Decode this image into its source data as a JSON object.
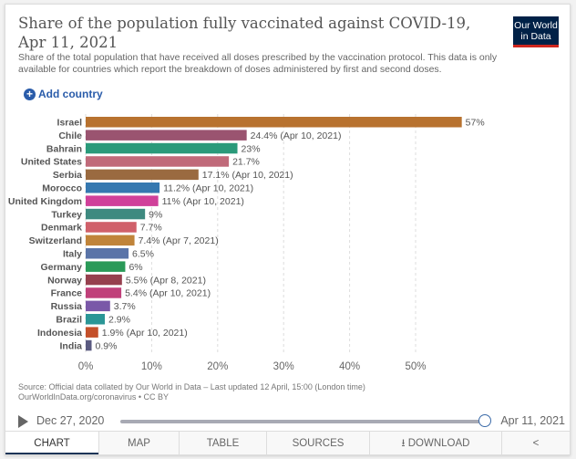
{
  "header": {
    "title": "Share of the population fully vaccinated against COVID-19, Apr 11, 2021",
    "subtitle": "Share of the total population that have received all doses prescribed by the vaccination protocol. This data is only available for countries which report the breakdown of doses administered by first and second doses.",
    "logo": "Our World in Data",
    "add_country": "Add country"
  },
  "chart_data": {
    "type": "bar",
    "orientation": "horizontal",
    "xlim": [
      0,
      57
    ],
    "grid": true,
    "ticks": [
      "0%",
      "10%",
      "20%",
      "30%",
      "40%",
      "50%"
    ],
    "tick_values": [
      0,
      10,
      20,
      30,
      40,
      50
    ],
    "bars": [
      {
        "country": "Israel",
        "value": 57,
        "label": "57%",
        "color": "#b8722f"
      },
      {
        "country": "Chile",
        "value": 24.4,
        "label": "24.4% (Apr 10, 2021)",
        "color": "#9a5470"
      },
      {
        "country": "Bahrain",
        "value": 23,
        "label": "23%",
        "color": "#2a9a7a"
      },
      {
        "country": "United States",
        "value": 21.7,
        "label": "21.7%",
        "color": "#c06a7a"
      },
      {
        "country": "Serbia",
        "value": 17.1,
        "label": "17.1% (Apr 10, 2021)",
        "color": "#9a6a40"
      },
      {
        "country": "Morocco",
        "value": 11.2,
        "label": "11.2% (Apr 10, 2021)",
        "color": "#3578b0"
      },
      {
        "country": "United Kingdom",
        "value": 11,
        "label": "11% (Apr 10, 2021)",
        "color": "#d0409a"
      },
      {
        "country": "Turkey",
        "value": 9,
        "label": "9%",
        "color": "#3e8a80"
      },
      {
        "country": "Denmark",
        "value": 7.7,
        "label": "7.7%",
        "color": "#d0606a"
      },
      {
        "country": "Switzerland",
        "value": 7.4,
        "label": "7.4% (Apr 7, 2021)",
        "color": "#c0843a"
      },
      {
        "country": "Italy",
        "value": 6.5,
        "label": "6.5%",
        "color": "#5a74a8"
      },
      {
        "country": "Germany",
        "value": 6,
        "label": "6%",
        "color": "#2a9a58"
      },
      {
        "country": "Norway",
        "value": 5.5,
        "label": "5.5% (Apr 8, 2021)",
        "color": "#96404e"
      },
      {
        "country": "France",
        "value": 5.4,
        "label": "5.4% (Apr 10, 2021)",
        "color": "#c0407a"
      },
      {
        "country": "Russia",
        "value": 3.7,
        "label": "3.7%",
        "color": "#7a58a8"
      },
      {
        "country": "Brazil",
        "value": 2.9,
        "label": "2.9%",
        "color": "#2a9696"
      },
      {
        "country": "Indonesia",
        "value": 1.9,
        "label": "1.9% (Apr 10, 2021)",
        "color": "#c4502a"
      },
      {
        "country": "India",
        "value": 0.9,
        "label": "0.9%",
        "color": "#5a5a80"
      }
    ]
  },
  "footer": {
    "source": "Source: Official data collated by Our World in Data – Last updated 12 April, 15:00 (London time)",
    "url": "OurWorldInData.org/coronavirus • CC BY"
  },
  "timeline": {
    "start": "Dec 27, 2020",
    "end": "Apr 11, 2021",
    "position": 1.0
  },
  "tabs": [
    {
      "label": "CHART",
      "active": true
    },
    {
      "label": "MAP"
    },
    {
      "label": "TABLE"
    },
    {
      "label": "SOURCES"
    },
    {
      "label": "⭳ DOWNLOAD"
    },
    {
      "label": "share-icon"
    }
  ]
}
